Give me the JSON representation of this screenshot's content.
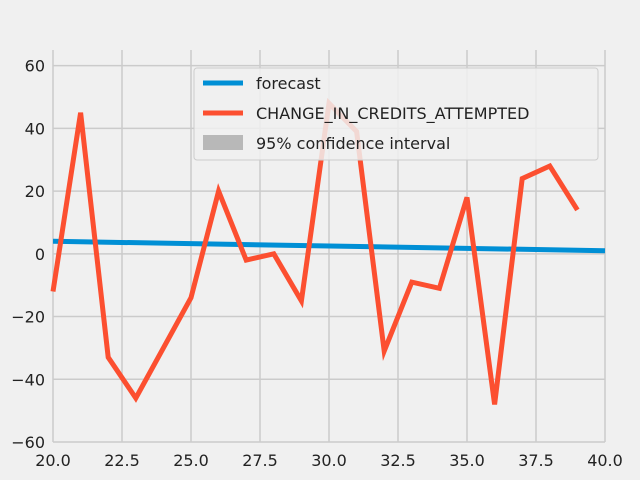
{
  "chart_data": {
    "type": "line",
    "title": "",
    "xlabel": "",
    "ylabel": "",
    "xlim": [
      20,
      40
    ],
    "ylim": [
      -60,
      65
    ],
    "xticks": [
      20.0,
      22.5,
      25.0,
      27.5,
      30.0,
      32.5,
      35.0,
      37.5,
      40.0
    ],
    "xtick_labels": [
      "20.0",
      "22.5",
      "25.0",
      "27.5",
      "30.0",
      "32.5",
      "35.0",
      "37.5",
      "40.0"
    ],
    "yticks": [
      -60,
      -40,
      -20,
      0,
      20,
      40,
      60
    ],
    "ytick_labels": [
      "−60",
      "−40",
      "−20",
      "0",
      "20",
      "40",
      "60"
    ],
    "grid": true,
    "legend_position": "upper-right",
    "background_color": "#f0f0f0",
    "grid_color": "#cbcbcb",
    "series": [
      {
        "name": "forecast",
        "color": "#008fd5",
        "x": [
          20,
          40
        ],
        "y": [
          4.0,
          1.0
        ]
      },
      {
        "name": "CHANGE_IN_CREDITS_ATTEMPTED",
        "color": "#fc4f30",
        "x": [
          20,
          21,
          22,
          23,
          24,
          25,
          26,
          27,
          28,
          29,
          30,
          31,
          32,
          33,
          34,
          35,
          36,
          37,
          38,
          39
        ],
        "y": [
          -12,
          45,
          -33,
          -46,
          -30,
          -14,
          20,
          -2,
          0,
          -15,
          48,
          39,
          -31,
          -9,
          -11,
          18,
          -48,
          24,
          28,
          14
        ]
      }
    ],
    "confidence_band": {
      "name": "95% confidence interval",
      "color": "#b8b8b8"
    }
  }
}
